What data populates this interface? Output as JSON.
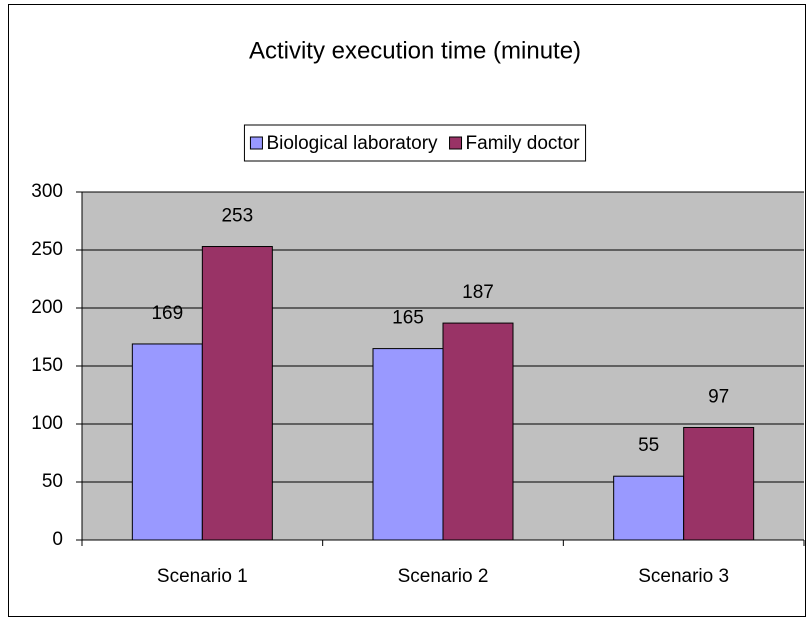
{
  "chart_data": {
    "type": "bar",
    "title": "Activity execution time (minute)",
    "categories": [
      "Scenario 1",
      "Scenario 2",
      "Scenario 3"
    ],
    "series": [
      {
        "name": "Biological laboratory",
        "color": "#9999ff",
        "values": [
          169,
          165,
          55
        ]
      },
      {
        "name": "Family doctor",
        "color": "#993366",
        "values": [
          253,
          187,
          97
        ]
      }
    ],
    "ylim": [
      0,
      300
    ],
    "yticks": [
      0,
      50,
      100,
      150,
      200,
      250,
      300
    ],
    "grid": true,
    "legend": "top",
    "plot_background": "#c0c0c0"
  }
}
